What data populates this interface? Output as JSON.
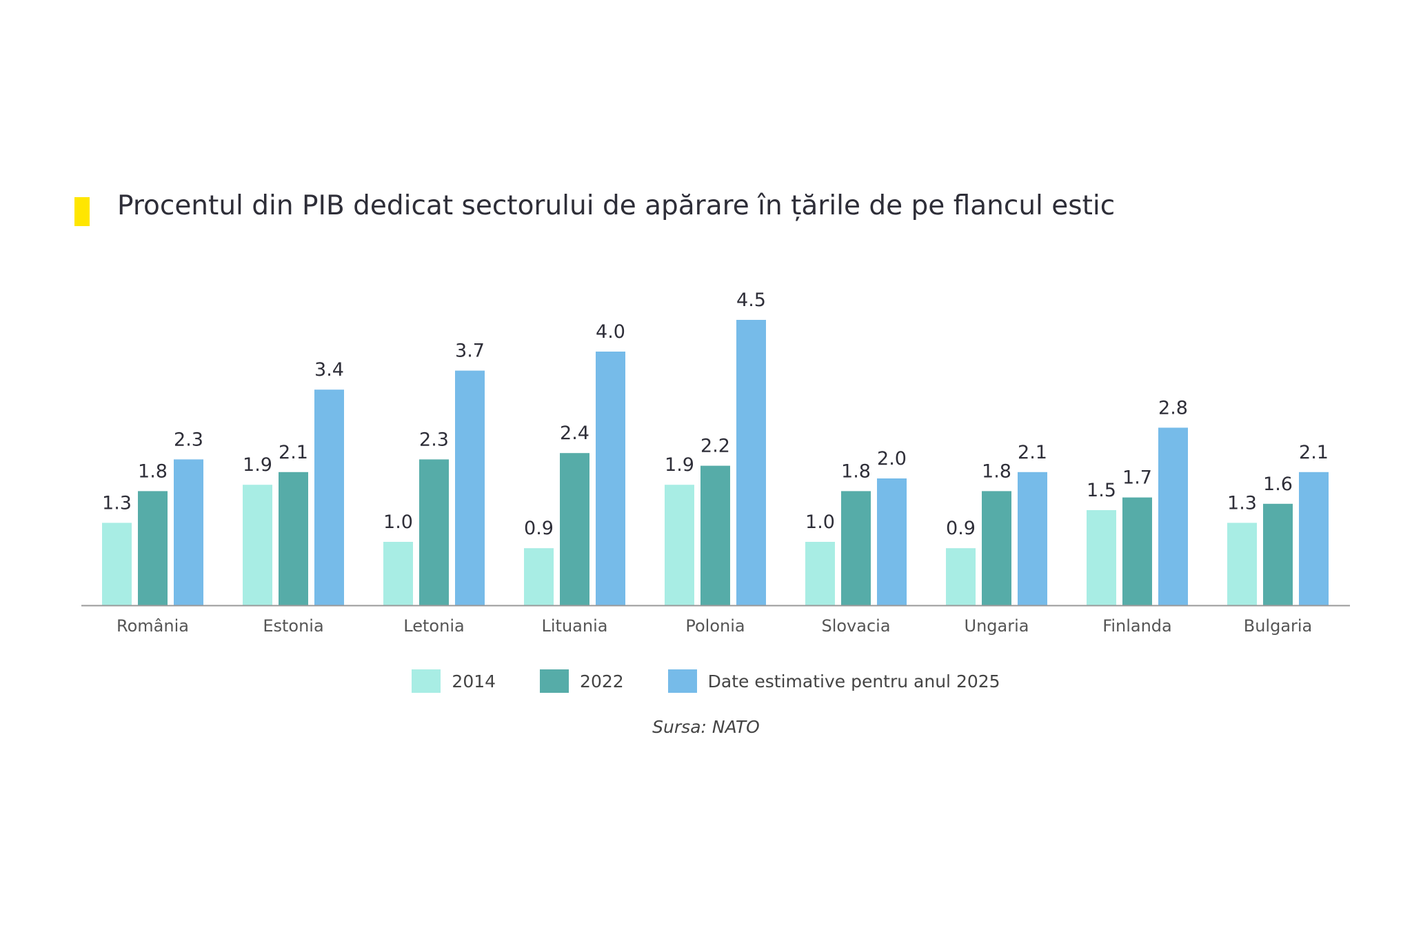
{
  "colors": {
    "accent": "#ffe600",
    "series_2014": "#a8ede4",
    "series_2022": "#56aca8",
    "series_2025": "#76bbe9",
    "axis": "#999999"
  },
  "chart_data": {
    "type": "bar",
    "title": "Procentul din PIB dedicat sectorului de apărare în țările de pe flancul estic",
    "categories": [
      "România",
      "Estonia",
      "Letonia",
      "Lituania",
      "Polonia",
      "Slovacia",
      "Ungaria",
      "Finlanda",
      "Bulgaria"
    ],
    "series": [
      {
        "name": "2014",
        "values": [
          1.3,
          1.9,
          1.0,
          0.9,
          1.9,
          1.0,
          0.9,
          1.5,
          1.3
        ]
      },
      {
        "name": "2022",
        "values": [
          1.8,
          2.1,
          2.3,
          2.4,
          2.2,
          1.8,
          1.8,
          1.7,
          1.6
        ]
      },
      {
        "name": "Date estimative pentru anul 2025",
        "values": [
          2.3,
          3.4,
          3.7,
          4.0,
          4.5,
          2.0,
          2.1,
          2.8,
          2.1
        ]
      }
    ],
    "xlabel": "",
    "ylabel": "",
    "ylim": [
      0,
      4.5
    ],
    "grid": false,
    "legend_position": "bottom-center",
    "source": "Sursa: NATO"
  }
}
